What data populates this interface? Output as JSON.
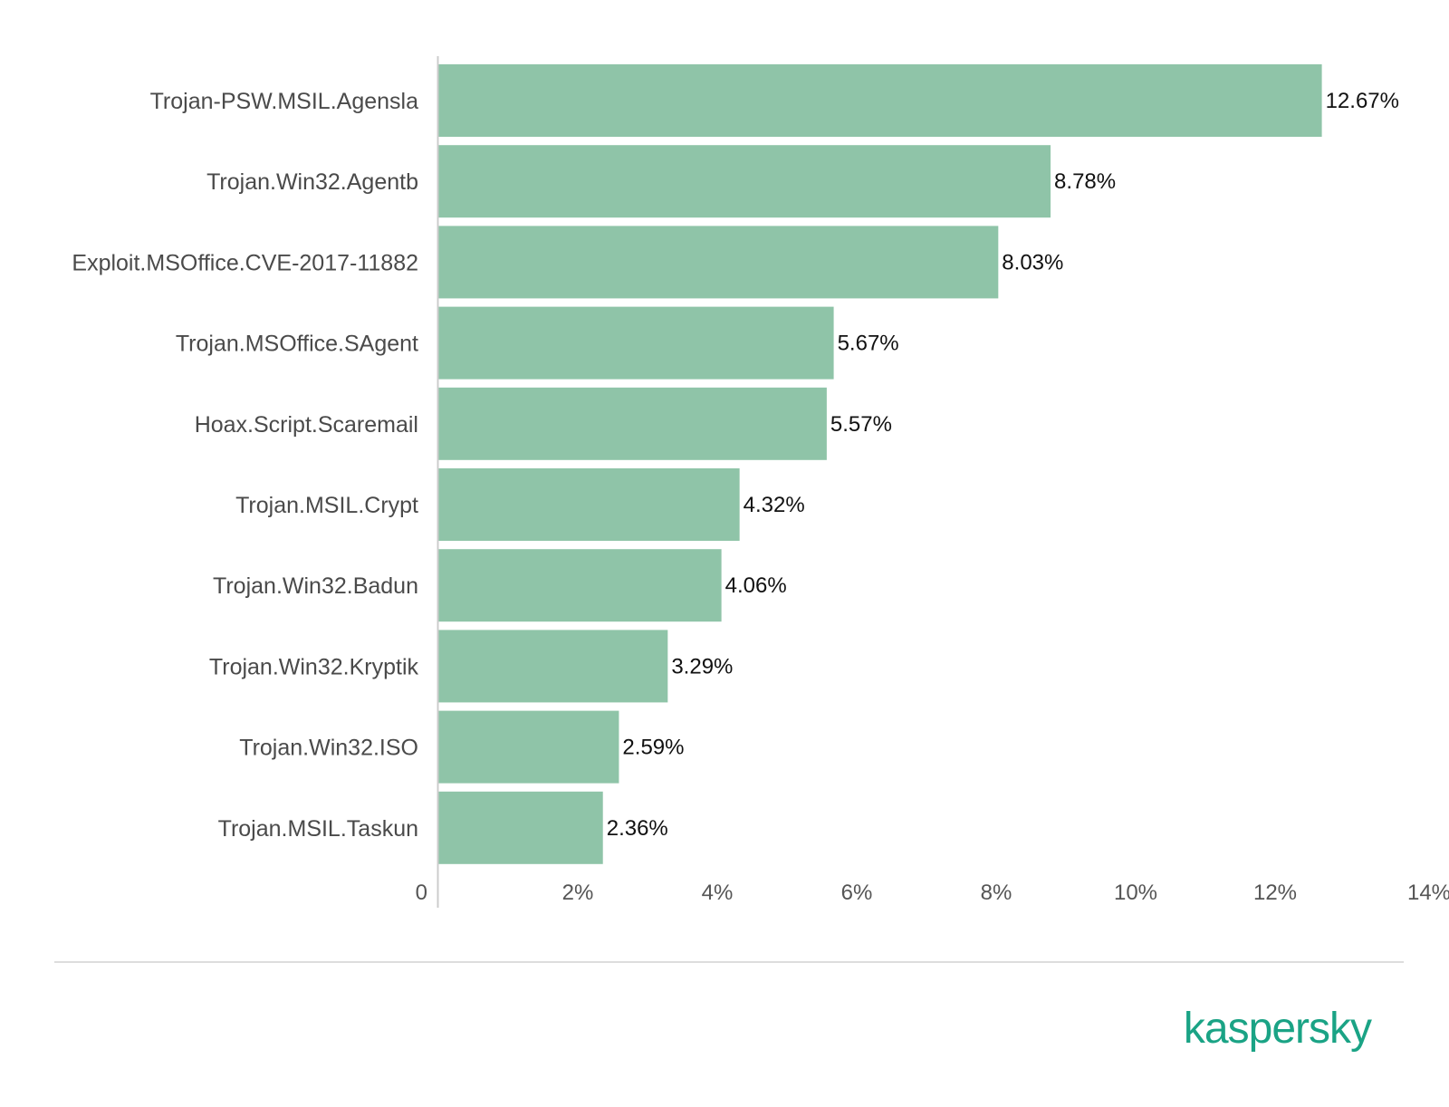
{
  "chart_data": {
    "type": "bar",
    "orientation": "horizontal",
    "categories": [
      "Trojan-PSW.MSIL.Agensla",
      "Trojan.Win32.Agentb",
      "Exploit.MSOffice.CVE-2017-11882",
      "Trojan.MSOffice.SAgent",
      "Hoax.Script.Scaremail",
      "Trojan.MSIL.Crypt",
      "Trojan.Win32.Badun",
      "Trojan.Win32.Kryptik",
      "Trojan.Win32.ISO",
      "Trojan.MSIL.Taskun"
    ],
    "values": [
      12.67,
      8.78,
      8.03,
      5.67,
      5.57,
      4.32,
      4.06,
      3.29,
      2.59,
      2.36
    ],
    "value_labels": [
      "12.67%",
      "8.78%",
      "8.03%",
      "5.67%",
      "5.57%",
      "4.32%",
      "4.06%",
      "3.29%",
      "2.59%",
      "2.36%"
    ],
    "xlim": [
      0,
      14
    ],
    "xticks": [
      0,
      2,
      4,
      6,
      8,
      10,
      12,
      14
    ],
    "xtick_labels": [
      "0",
      "2%",
      "4%",
      "6%",
      "8%",
      "10%",
      "12%",
      "14%"
    ],
    "grid": false,
    "legend": "none",
    "bar_color": "#8fc4a8",
    "label_color": "#4a4a4a",
    "value_label_color": "#111111",
    "axis_color": "#cccccc"
  },
  "brand": {
    "logo_text": "kaspersky",
    "color": "#1aa385"
  }
}
